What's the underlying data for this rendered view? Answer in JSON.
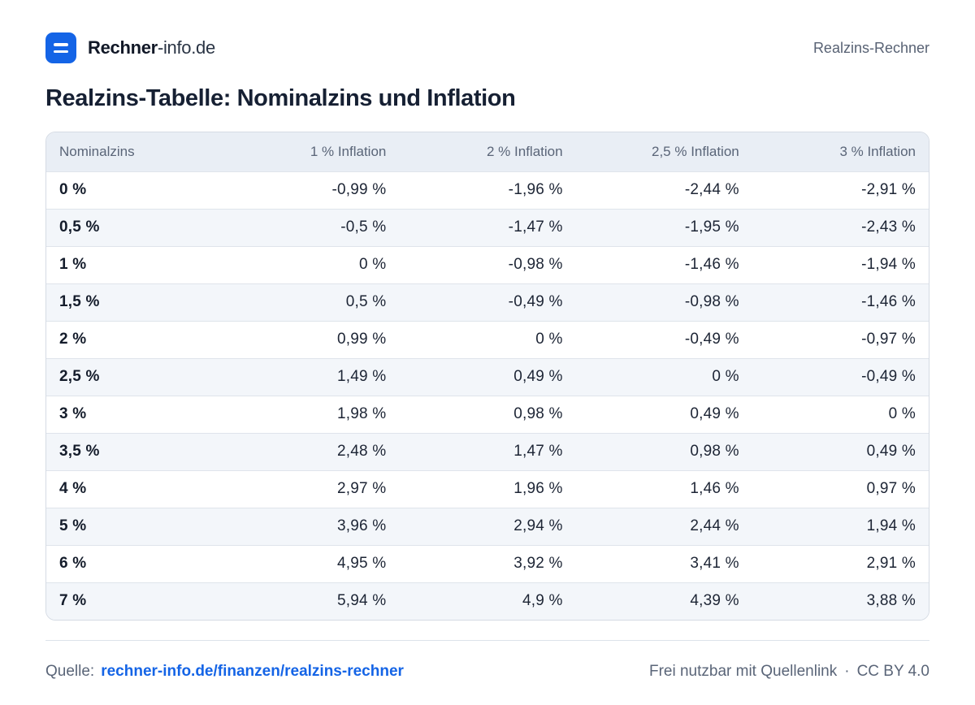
{
  "header": {
    "brand_bold": "Rechner",
    "brand_light": "-info.de",
    "page_name": "Realzins-Rechner"
  },
  "title": "Realzins-Tabelle: Nominalzins und Inflation",
  "table": {
    "columns": [
      "Nominalzins",
      "1 % Inflation",
      "2 % Inflation",
      "2,5 % Inflation",
      "3 % Inflation"
    ],
    "rows": [
      [
        "0 %",
        "-0,99 %",
        "-1,96 %",
        "-2,44 %",
        "-2,91 %"
      ],
      [
        "0,5 %",
        "-0,5 %",
        "-1,47 %",
        "-1,95 %",
        "-2,43 %"
      ],
      [
        "1 %",
        "0 %",
        "-0,98 %",
        "-1,46 %",
        "-1,94 %"
      ],
      [
        "1,5 %",
        "0,5 %",
        "-0,49 %",
        "-0,98 %",
        "-1,46 %"
      ],
      [
        "2 %",
        "0,99 %",
        "0 %",
        "-0,49 %",
        "-0,97 %"
      ],
      [
        "2,5 %",
        "1,49 %",
        "0,49 %",
        "0 %",
        "-0,49 %"
      ],
      [
        "3 %",
        "1,98 %",
        "0,98 %",
        "0,49 %",
        "0 %"
      ],
      [
        "3,5 %",
        "2,48 %",
        "1,47 %",
        "0,98 %",
        "0,49 %"
      ],
      [
        "4 %",
        "2,97 %",
        "1,96 %",
        "1,46 %",
        "0,97 %"
      ],
      [
        "5 %",
        "3,96 %",
        "2,94 %",
        "2,44 %",
        "1,94 %"
      ],
      [
        "6 %",
        "4,95 %",
        "3,92 %",
        "3,41 %",
        "2,91 %"
      ],
      [
        "7 %",
        "5,94 %",
        "4,9 %",
        "4,39 %",
        "3,88 %"
      ]
    ]
  },
  "footer": {
    "source_label": "Quelle:",
    "source_link": "rechner-info.de/finanzen/realzins-rechner",
    "license_text": "Frei nutzbar mit Quellenlink",
    "separator": "·",
    "license": "CC BY 4.0"
  },
  "colors": {
    "accent": "#1464e6",
    "header_bg": "#e9eef5",
    "stripe_bg": "#f3f6fa"
  }
}
